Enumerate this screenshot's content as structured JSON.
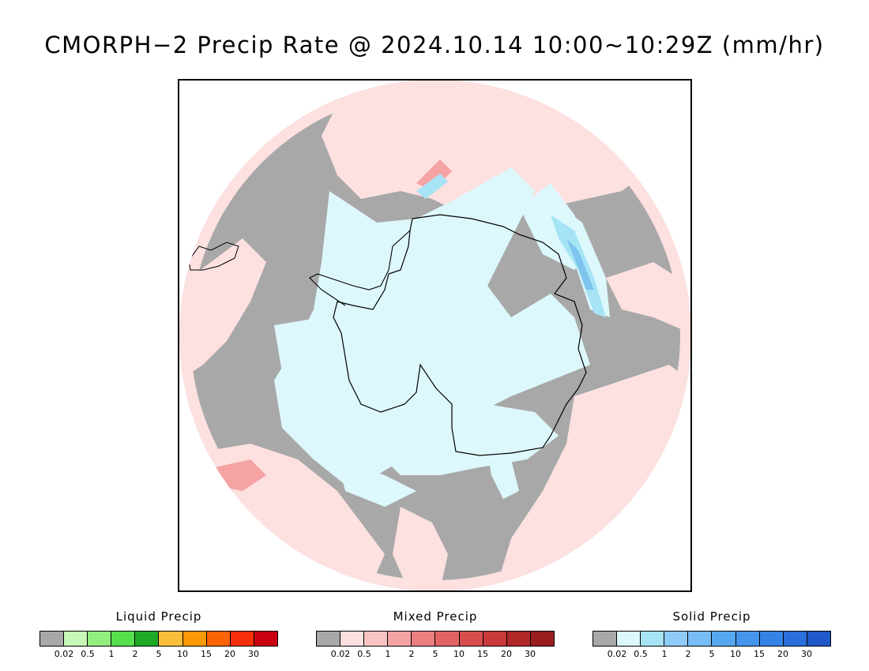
{
  "title": "CMORPH−2 Precip Rate @ 2024.10.14 10:00~10:29Z (mm/hr)",
  "map": {
    "colors": {
      "no_precip": "#a8a8a8",
      "mixed_light": "#fde0e0",
      "mixed_mid": "#f5a3a3",
      "solid_light": "#ddf8fc",
      "solid_mid": "#a6e4f5",
      "solid_heavy": "#7ec4ee",
      "liquid_light": "#c7f8b8",
      "coast": "#000000"
    }
  },
  "legends": [
    {
      "title": "Liquid Precip",
      "ticks": [
        "0.02",
        "0.5",
        "1",
        "2",
        "5",
        "10",
        "15",
        "20",
        "30"
      ],
      "colors": [
        "#a8a8a8",
        "#c7f8b8",
        "#92ee7f",
        "#55e04c",
        "#1faa25",
        "#fbbd3c",
        "#fb9907",
        "#fb6306",
        "#f82f0a",
        "#c80010"
      ]
    },
    {
      "title": "Mixed Precip",
      "ticks": [
        "0.02",
        "0.5",
        "1",
        "2",
        "5",
        "10",
        "15",
        "20",
        "30"
      ],
      "colors": [
        "#a8a8a8",
        "#fde0e0",
        "#f9c3c3",
        "#f5a3a3",
        "#ec8080",
        "#e26363",
        "#d84e4e",
        "#c93a3a",
        "#b12829",
        "#9a1e1e"
      ]
    },
    {
      "title": "Solid Precip",
      "ticks": [
        "0.02",
        "0.5",
        "1",
        "2",
        "5",
        "10",
        "15",
        "20",
        "30"
      ],
      "colors": [
        "#a8a8a8",
        "#ddf8fc",
        "#a6e4f5",
        "#8ecbf8",
        "#78bdf5",
        "#55a8f0",
        "#4595ec",
        "#3683e6",
        "#2a6fdc",
        "#1f58c9"
      ]
    }
  ]
}
